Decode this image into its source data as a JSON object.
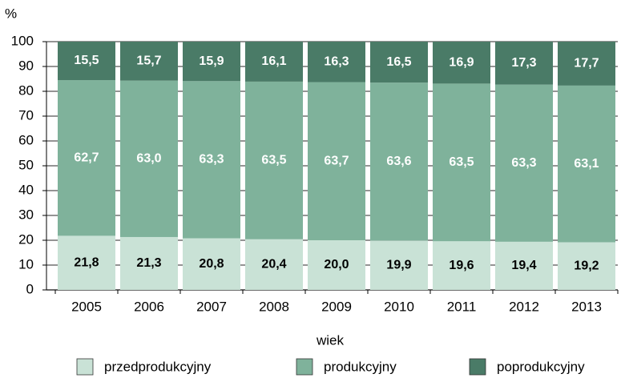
{
  "chart_data": {
    "type": "stacked_bar",
    "y_axis_label": "%",
    "x_axis_label": "wiek",
    "categories": [
      "2005",
      "2006",
      "2007",
      "2008",
      "2009",
      "2010",
      "2011",
      "2012",
      "2013"
    ],
    "series": [
      {
        "name": "przedprodukcyjny",
        "color": "#c9e2d6",
        "label_color": "#000000",
        "values": [
          21.8,
          21.3,
          20.8,
          20.4,
          20.0,
          19.9,
          19.6,
          19.4,
          19.2
        ],
        "value_labels": [
          "21,8",
          "21,3",
          "20,8",
          "20,4",
          "20,0",
          "19,9",
          "19,6",
          "19,4",
          "19,2"
        ]
      },
      {
        "name": "produkcyjny",
        "color": "#7fb29b",
        "label_color": "#ffffff",
        "values": [
          62.7,
          63.0,
          63.3,
          63.5,
          63.7,
          63.6,
          63.5,
          63.3,
          63.1
        ],
        "value_labels": [
          "62,7",
          "63,0",
          "63,3",
          "63,5",
          "63,7",
          "63,6",
          "63,5",
          "63,3",
          "63,1"
        ]
      },
      {
        "name": "poprodukcyjny",
        "color": "#4a7b67",
        "label_color": "#ffffff",
        "values": [
          15.5,
          15.7,
          15.9,
          16.1,
          16.3,
          16.5,
          16.9,
          17.3,
          17.7
        ],
        "value_labels": [
          "15,5",
          "15,7",
          "15,9",
          "16,1",
          "16,3",
          "16,5",
          "16,9",
          "17,3",
          "17,7"
        ]
      }
    ],
    "ylim": [
      0,
      100
    ],
    "yticks": [
      0,
      10,
      20,
      30,
      40,
      50,
      60,
      70,
      80,
      90,
      100
    ],
    "grid": true,
    "legend": "bottom"
  }
}
